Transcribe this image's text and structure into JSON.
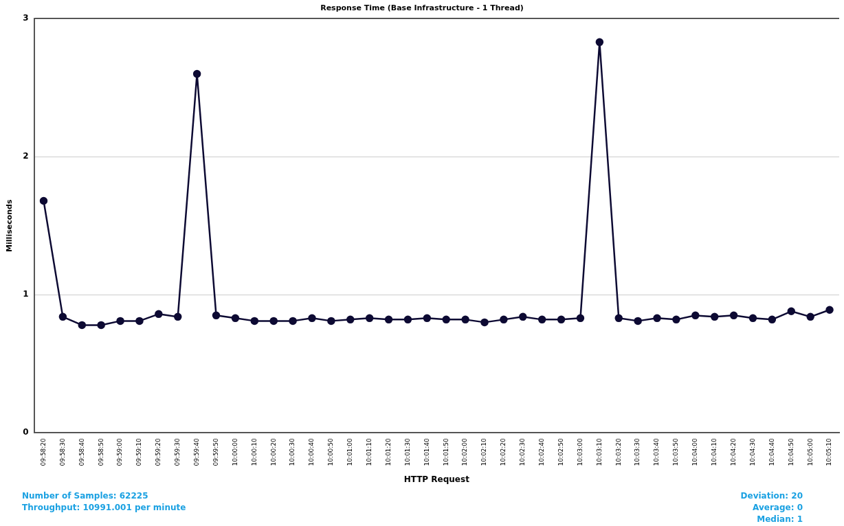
{
  "chart_data": {
    "type": "line",
    "title": "Response Time (Base Infrastructure - 1 Thread)",
    "xlabel": "HTTP Request",
    "ylabel": "Milliseconds",
    "categories": [
      "09:58:20",
      "09:58:30",
      "09:58:40",
      "09:58:50",
      "09:59:00",
      "09:59:10",
      "09:59:20",
      "09:59:30",
      "09:59:40",
      "09:59:50",
      "10:00:00",
      "10:00:10",
      "10:00:20",
      "10:00:30",
      "10:00:40",
      "10:00:50",
      "10:01:00",
      "10:01:10",
      "10:01:20",
      "10:01:30",
      "10:01:40",
      "10:01:50",
      "10:02:00",
      "10:02:10",
      "10:02:20",
      "10:02:30",
      "10:02:40",
      "10:02:50",
      "10:03:00",
      "10:03:10",
      "10:03:20",
      "10:03:30",
      "10:03:40",
      "10:03:50",
      "10:04:00",
      "10:04:10",
      "10:04:20",
      "10:04:30",
      "10:04:40",
      "10:04:50",
      "10:05:00",
      "10:05:10"
    ],
    "series": [
      {
        "color": "#0d0a33",
        "values": [
          1.68,
          0.84,
          0.78,
          0.78,
          0.81,
          0.81,
          0.86,
          0.84,
          2.6,
          0.85,
          0.83,
          0.81,
          0.81,
          0.81,
          0.83,
          0.81,
          0.82,
          0.83,
          0.82,
          0.82,
          0.83,
          0.82,
          0.82,
          0.8,
          0.82,
          0.84,
          0.82,
          0.82,
          0.83,
          2.83,
          0.83,
          0.81,
          0.83,
          0.82,
          0.85,
          0.84,
          0.85,
          0.83,
          0.82,
          0.88,
          0.84,
          0.89
        ]
      }
    ],
    "ylim": [
      0,
      3
    ],
    "yticks": [
      0,
      1,
      2,
      3
    ],
    "grid": "y",
    "legend": false,
    "marker": "circle",
    "line_style": "solid",
    "annotations": [
      "Number of Samples: 62225",
      "Throughput: 10991.001 per minute",
      "Deviation: 20",
      "Average: 0",
      "Median: 1"
    ]
  }
}
